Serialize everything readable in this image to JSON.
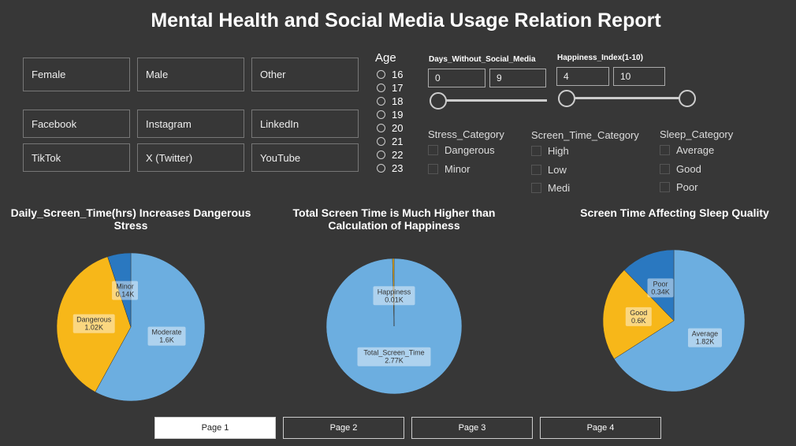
{
  "title": "Mental Health and Social Media Usage Relation Report",
  "gender": [
    "Female",
    "Male",
    "Other"
  ],
  "platforms": [
    "Facebook",
    "Instagram",
    "LinkedIn",
    "TikTok",
    "X (Twitter)",
    "YouTube"
  ],
  "age": {
    "label": "Age",
    "options": [
      "16",
      "17",
      "18",
      "19",
      "20",
      "21",
      "22",
      "23"
    ]
  },
  "days_slider": {
    "label": "Days_Without_Social_Media",
    "min": "0",
    "max": "9"
  },
  "happiness_slider": {
    "label": "Happiness_Index(1-10)",
    "min": "4",
    "max": "10"
  },
  "stress": {
    "label": "Stress_Category",
    "options": [
      "Dangerous",
      "Minor"
    ]
  },
  "screen": {
    "label": "Screen_Time_Category",
    "options": [
      "High",
      "Low",
      "Medi"
    ]
  },
  "sleep": {
    "label": "Sleep_Category",
    "options": [
      "Average",
      "Good",
      "Poor"
    ]
  },
  "colors": {
    "light": "#6caee0",
    "yellow": "#f7b719",
    "dark": "#2a78c0"
  },
  "chart_data": [
    {
      "type": "pie",
      "title": "Daily_Screen_Time(hrs) Increases Dangerous Stress",
      "labels": [
        "Moderate",
        "Dangerous",
        "Minor"
      ],
      "values": [
        1600,
        1020,
        140
      ],
      "display": [
        "1.6K",
        "1.02K",
        "0.14K"
      ]
    },
    {
      "type": "pie",
      "title": "Total Screen Time is Much Higher than Calculation of Happiness",
      "labels": [
        "Total_Screen_Time",
        "Happiness"
      ],
      "values": [
        2770,
        10
      ],
      "display": [
        "2.77K",
        "0.01K"
      ]
    },
    {
      "type": "pie",
      "title": "Screen Time Affecting Sleep Quality",
      "labels": [
        "Average",
        "Good",
        "Poor"
      ],
      "values": [
        1820,
        600,
        340
      ],
      "display": [
        "1.82K",
        "0.6K",
        "0.34K"
      ]
    }
  ],
  "pages": [
    "Page 1",
    "Page 2",
    "Page 3",
    "Page 4"
  ]
}
